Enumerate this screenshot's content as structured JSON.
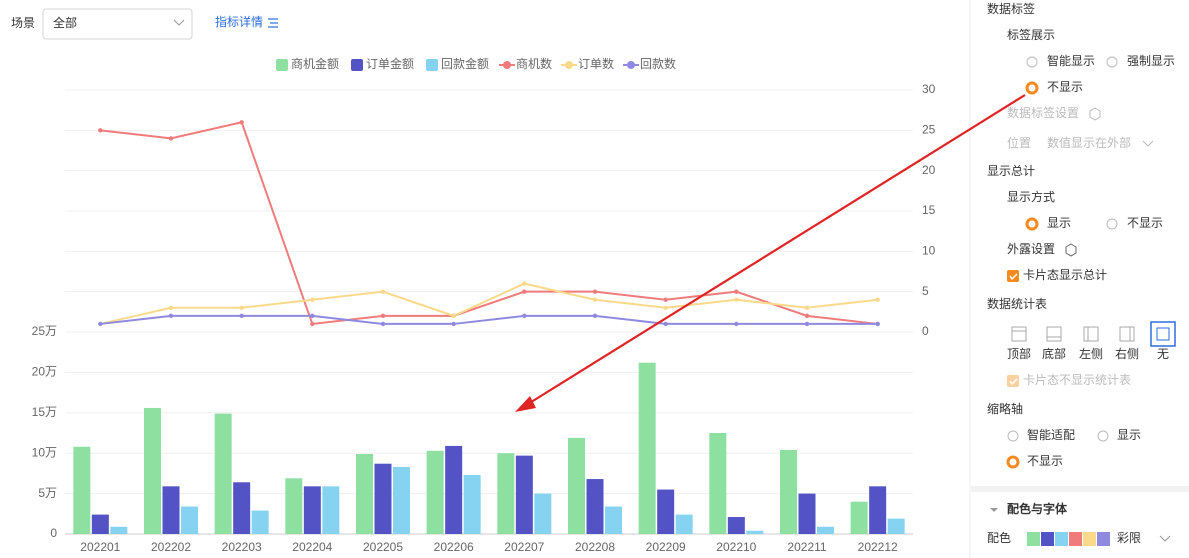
{
  "toolbar": {
    "scene_label": "场景",
    "scene_value": "全部",
    "detail_link": "指标详情"
  },
  "chart_data": {
    "type": "combo",
    "categories": [
      "202201",
      "202202",
      "202203",
      "202204",
      "202205",
      "202206",
      "202207",
      "202208",
      "202209",
      "202210",
      "202211",
      "202212"
    ],
    "series": [
      {
        "name": "商机金额",
        "type": "bar",
        "color": "#8ee0a1",
        "values": [
          108000,
          156000,
          149000,
          69000,
          99000,
          103000,
          100000,
          119000,
          212000,
          125000,
          104000,
          40000
        ]
      },
      {
        "name": "订单金额",
        "type": "bar",
        "color": "#5353c6",
        "values": [
          24000,
          59000,
          64000,
          59000,
          87000,
          109000,
          97000,
          68000,
          55000,
          21000,
          50000,
          59000
        ]
      },
      {
        "name": "回款金额",
        "type": "bar",
        "color": "#85d3f0",
        "values": [
          9000,
          34000,
          29000,
          59000,
          83000,
          73000,
          50000,
          34000,
          24000,
          4000,
          9000,
          19000
        ]
      },
      {
        "name": "商机数",
        "type": "line",
        "axis": "y2",
        "color": "#f07b7b",
        "values": [
          25,
          24,
          26,
          1,
          2,
          2,
          5,
          5,
          4,
          5,
          2,
          1
        ]
      },
      {
        "name": "订单数",
        "type": "line",
        "axis": "y2",
        "color": "#fbd98b",
        "values": [
          1,
          3,
          3,
          4,
          5,
          2,
          6,
          4,
          3,
          4,
          3,
          4
        ]
      },
      {
        "name": "回款数",
        "type": "line",
        "axis": "y2",
        "color": "#8f8ae0",
        "values": [
          1,
          2,
          2,
          2,
          1,
          1,
          2,
          2,
          1,
          1,
          1,
          1
        ]
      }
    ],
    "ylim": [
      0,
      250000
    ],
    "yticks": [
      0,
      {
        "value": 50000,
        "label": "5万"
      },
      {
        "value": 100000,
        "label": "10万"
      },
      {
        "value": 150000,
        "label": "15万"
      },
      {
        "value": 200000,
        "label": "20万"
      },
      {
        "value": 250000,
        "label": "25万"
      }
    ],
    "y2lim": [
      0,
      30
    ],
    "y2ticks": [
      0,
      5,
      10,
      15,
      20,
      25,
      30
    ],
    "grid": true
  },
  "panel": {
    "data_label": {
      "title": "数据标签",
      "display_title": "标签展示",
      "options": [
        "智能显示",
        "强制显示",
        "不显示"
      ],
      "settings": "数据标签设置",
      "position_label": "位置",
      "position_value": "数值显示在外部"
    },
    "total": {
      "title": "显示总计",
      "mode_title": "显示方式",
      "options": [
        "显示",
        "不显示"
      ],
      "expose": "外露设置",
      "card_total": "卡片态显示总计"
    },
    "stat_table": {
      "title": "数据统计表",
      "options": [
        "顶部",
        "底部",
        "左侧",
        "右侧",
        "无"
      ],
      "card_hide": "卡片态不显示统计表"
    },
    "thumb_axis": {
      "title": "缩略轴",
      "options": [
        "智能适配",
        "显示",
        "不显示"
      ]
    },
    "color_font": {
      "title": "配色与字体",
      "palette_label": "配色",
      "palette_name": "彩限"
    }
  }
}
